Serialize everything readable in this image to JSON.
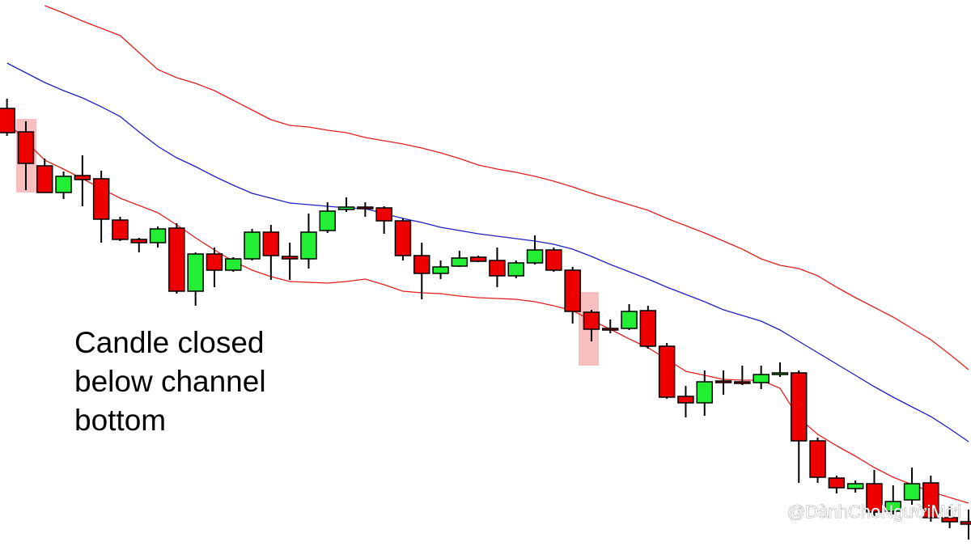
{
  "chart_data": {
    "type": "candlestick",
    "annotation": "Candle closed below channel bottom",
    "watermark": "@DànhChoNgườiMới",
    "up_color": "#22ee33",
    "down_color": "#ee0000",
    "ylim": [
      0,
      675
    ],
    "categories": [
      null,
      null,
      null,
      null,
      null,
      null,
      null,
      null,
      null,
      null,
      null,
      null,
      null,
      null,
      null,
      null,
      null,
      null,
      null,
      null,
      null,
      null,
      null,
      null,
      null,
      null,
      null,
      null,
      null,
      null,
      null,
      null,
      null,
      null,
      null,
      null,
      null,
      null,
      null,
      null,
      null,
      null,
      null,
      null,
      null,
      null,
      null,
      null,
      null,
      null,
      null,
      null
    ],
    "open": [
      541,
      512,
      470,
      437,
      458,
      454,
      403,
      379,
      375,
      393,
      315,
      361,
      341,
      355,
      388,
      358,
      355,
      390,
      416,
      419,
      418,
      402,
      359,
      337,
      346,
      357,
      353,
      334,
      350,
      366,
      341,
      289,
      269,
      269,
      291,
      247,
      185,
      177,
      204,
      203,
      202,
      212,
      214,
      130,
      84,
      71,
      77,
      43,
      57,
      78,
      35,
      30
    ],
    "high": [
      553,
      525,
      479,
      463,
      483,
      464,
      407,
      381,
      395,
      399,
      363,
      369,
      357,
      392,
      397,
      375,
      411,
      425,
      431,
      425,
      420,
      405,
      375,
      353,
      365,
      359,
      369,
      353,
      384,
      369,
      345,
      292,
      280,
      299,
      297,
      251,
      198,
      217,
      217,
      223,
      223,
      227,
      217,
      134,
      87,
      81,
      94,
      75,
      97,
      87,
      49,
      45
    ],
    "low": [
      507,
      440,
      437,
      429,
      420,
      375,
      377,
      363,
      369,
      312,
      297,
      320,
      339,
      353,
      329,
      329,
      343,
      387,
      413,
      407,
      386,
      353,
      305,
      330,
      345,
      351,
      320,
      331,
      348,
      339,
      275,
      253,
      263,
      267,
      244,
      182,
      159,
      161,
      187,
      199,
      194,
      209,
      78,
      78,
      65,
      66,
      35,
      39,
      51,
      30,
      22,
      8
    ],
    "close": [
      511,
      473,
      437,
      457,
      453,
      404,
      379,
      375,
      392,
      315,
      361,
      341,
      355,
      388,
      359,
      355,
      388,
      414,
      419,
      417,
      402,
      359,
      337,
      345,
      356,
      352,
      334,
      350,
      366,
      341,
      290,
      268,
      268,
      290,
      247,
      184,
      177,
      203,
      202,
      201,
      212,
      214,
      130,
      85,
      72,
      77,
      42,
      55,
      77,
      35,
      30,
      27
    ],
    "series": [
      {
        "color": "#e02020",
        "values": [
          null,
          null,
          668,
          659,
          649,
          640,
          631,
          610,
          589,
          579,
          572,
          563,
          551,
          539,
          527,
          520,
          518,
          514,
          511,
          505,
          501,
          497,
          492,
          486,
          479,
          471,
          466,
          462,
          457,
          451,
          444,
          436,
          429,
          422,
          415,
          405,
          396,
          387,
          377,
          367,
          355,
          347,
          343,
          334,
          320,
          307,
          295,
          283,
          269,
          255,
          237,
          218
        ]
      },
      {
        "color": "#2020c0",
        "values": [
          597,
          585,
          573,
          563,
          554,
          543,
          531,
          512,
          494,
          480,
          469,
          457,
          446,
          436,
          430,
          424,
          422,
          420,
          418,
          417,
          411,
          405,
          400,
          394,
          390,
          386,
          383,
          380,
          377,
          373,
          367,
          358,
          348,
          339,
          330,
          320,
          311,
          302,
          292,
          285,
          278,
          267,
          253,
          239,
          225,
          211,
          197,
          184,
          172,
          160,
          145,
          129
        ]
      },
      {
        "color": "#e02020",
        "values": [
          525,
          500,
          477,
          466,
          454,
          442,
          430,
          421,
          412,
          397,
          381,
          366,
          352,
          341,
          333,
          327,
          326,
          325,
          327,
          330,
          323,
          315,
          313,
          312,
          309,
          307,
          306,
          305,
          302,
          297,
          291,
          279,
          268,
          256,
          245,
          231,
          216,
          211,
          206,
          205,
          205,
          195,
          158,
          138,
          124,
          111,
          97,
          85,
          76,
          67,
          60,
          53
        ]
      }
    ]
  }
}
